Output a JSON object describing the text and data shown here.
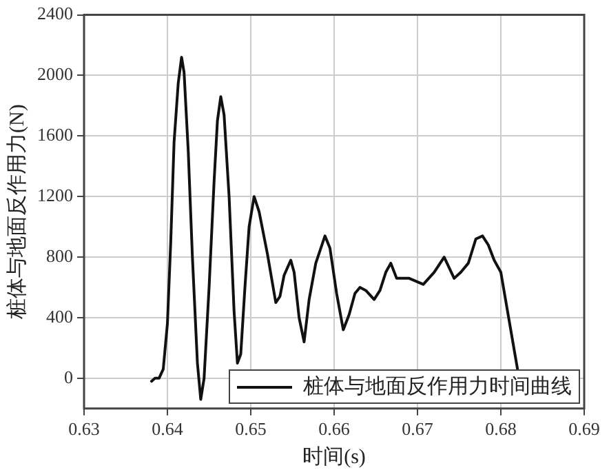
{
  "chart_data": {
    "type": "line",
    "xlabel": "时间(s)",
    "ylabel": "桩体与地面反作用力(N)",
    "xlim": [
      0.63,
      0.69
    ],
    "xticks": [
      0.63,
      0.64,
      0.65,
      0.66,
      0.67,
      0.68,
      0.69
    ],
    "ylim": [
      -200,
      2400
    ],
    "yticks": [
      0,
      400,
      800,
      1200,
      1600,
      2000,
      2400
    ],
    "grid": true,
    "legend": "bottom right",
    "marker": "none",
    "line_style": "solid",
    "series": [
      {
        "name": "桩体与地面反作用力时间曲线",
        "color": "#111111",
        "x": [
          0.6381,
          0.6385,
          0.639,
          0.6395,
          0.64,
          0.6404,
          0.6408,
          0.6413,
          0.6417,
          0.642,
          0.6425,
          0.643,
          0.6436,
          0.644,
          0.6444,
          0.645,
          0.6456,
          0.646,
          0.6464,
          0.6468,
          0.6474,
          0.648,
          0.6484,
          0.6488,
          0.6493,
          0.6498,
          0.6504,
          0.651,
          0.652,
          0.653,
          0.6535,
          0.654,
          0.6548,
          0.6552,
          0.6558,
          0.6564,
          0.657,
          0.6578,
          0.6589,
          0.6595,
          0.6603,
          0.6611,
          0.6618,
          0.6625,
          0.6631,
          0.6638,
          0.6648,
          0.6655,
          0.6662,
          0.6668,
          0.6675,
          0.669,
          0.6707,
          0.672,
          0.6732,
          0.6744,
          0.6752,
          0.6761,
          0.677,
          0.6778,
          0.6785,
          0.6792,
          0.68,
          0.681,
          0.682
        ],
        "values": [
          -20,
          0,
          0,
          60,
          360,
          900,
          1560,
          1950,
          2120,
          2020,
          1500,
          800,
          100,
          -140,
          0,
          600,
          1300,
          1700,
          1860,
          1740,
          1200,
          440,
          100,
          160,
          600,
          1000,
          1200,
          1100,
          820,
          500,
          540,
          680,
          780,
          700,
          400,
          240,
          520,
          760,
          940,
          860,
          560,
          320,
          420,
          560,
          600,
          580,
          520,
          580,
          700,
          760,
          660,
          660,
          620,
          700,
          800,
          660,
          700,
          760,
          920,
          940,
          880,
          780,
          700,
          380,
          60
        ]
      }
    ]
  }
}
